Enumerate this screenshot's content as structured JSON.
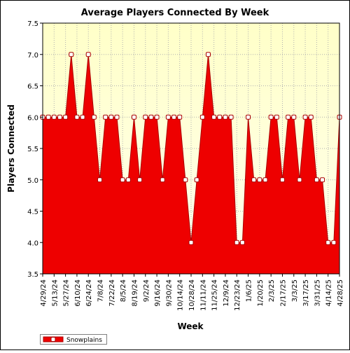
{
  "chart_data": {
    "type": "area",
    "title": "Average Players Connected By Week",
    "xlabel": "Week",
    "ylabel": "Players Connected",
    "ylim": [
      3.5,
      7.5
    ],
    "yticks": [
      "3.5",
      "4.0",
      "4.5",
      "5.0",
      "5.5",
      "6.0",
      "6.5",
      "7.0",
      "7.5"
    ],
    "grid": true,
    "legend_position": "bottom-left",
    "colors": {
      "fill": "#ee0000",
      "line": "#aa0000",
      "plot_background": "#ffffdd",
      "grid": "#b0b0b0",
      "marker_fill": "#ffffff"
    },
    "x_tick_labels": [
      "4/29/24",
      "5/13/24",
      "5/27/24",
      "6/10/24",
      "6/24/24",
      "7/8/24",
      "7/22/24",
      "8/5/24",
      "8/19/24",
      "9/2/24",
      "9/16/24",
      "9/30/24",
      "10/14/24",
      "10/28/24",
      "11/11/24",
      "11/25/24",
      "12/9/24",
      "12/23/24",
      "1/6/25",
      "1/20/25",
      "2/3/25",
      "2/17/25",
      "3/3/25",
      "3/17/25",
      "3/31/25",
      "4/14/25",
      "4/28/25"
    ],
    "series": [
      {
        "name": "Snowplains",
        "values": [
          6,
          6,
          6,
          6,
          6,
          7,
          6,
          6,
          7,
          6,
          5,
          6,
          6,
          6,
          5,
          5,
          6,
          5,
          6,
          6,
          6,
          5,
          6,
          6,
          6,
          5,
          4,
          5,
          6,
          7,
          6,
          6,
          6,
          6,
          4,
          4,
          6,
          5,
          5,
          5,
          6,
          6,
          5,
          6,
          6,
          5,
          6,
          6,
          5,
          5,
          4,
          4,
          6
        ]
      }
    ]
  }
}
